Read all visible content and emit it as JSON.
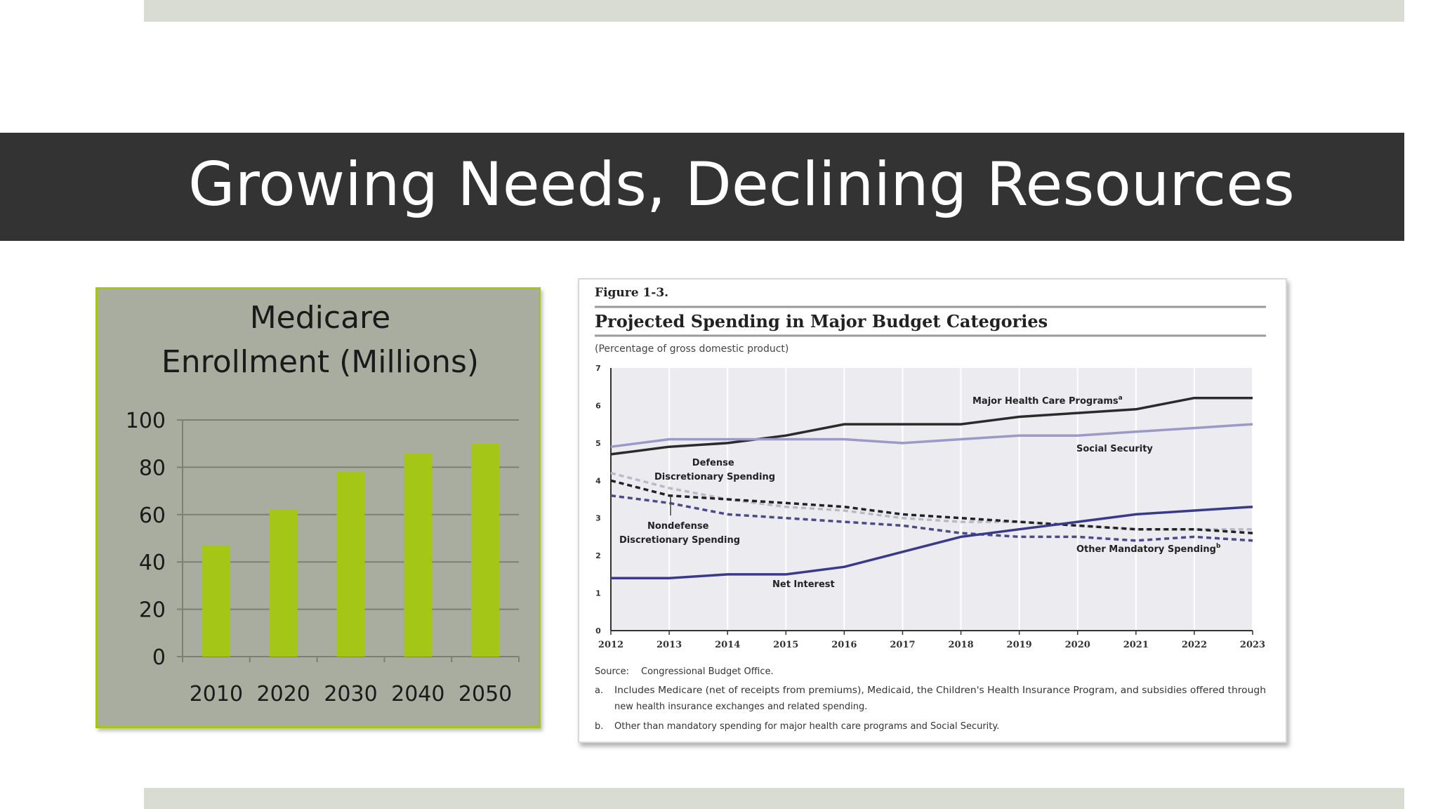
{
  "slide": {
    "title": "Growing Needs, Declining Resources",
    "colors": {
      "title_bar": "#333333",
      "accent_band": "#d9dcd3",
      "bar_green": "#a4c617"
    }
  },
  "chart_data": [
    {
      "type": "bar",
      "title": "Medicare Enrollment (Millions)",
      "title_lines": [
        "Medicare",
        "Enrollment (Millions)"
      ],
      "categories": [
        "2010",
        "2020",
        "2030",
        "2040",
        "2050"
      ],
      "values": [
        47,
        62,
        78,
        86,
        90
      ],
      "ylim": [
        0,
        100
      ],
      "yticks": [
        0,
        20,
        40,
        60,
        80,
        100
      ],
      "grid": true,
      "legend": "none",
      "bar_color": "#a4c617"
    },
    {
      "type": "line",
      "figure_label": "Figure 1-3.",
      "title": "Projected Spending in Major Budget Categories",
      "subtitle": "(Percentage of gross domestic product)",
      "x": [
        2012,
        2013,
        2014,
        2015,
        2016,
        2017,
        2018,
        2019,
        2020,
        2021,
        2022,
        2023
      ],
      "ylim": [
        0,
        7
      ],
      "yticks": [
        0,
        1,
        2,
        3,
        4,
        5,
        6,
        7
      ],
      "series": [
        {
          "name": "Major Health Care Programs",
          "label_sup": "a",
          "style": "solid",
          "color": "#2b2b2b",
          "values": [
            4.7,
            4.9,
            5.0,
            5.2,
            5.5,
            5.5,
            5.5,
            5.7,
            5.8,
            5.9,
            6.2,
            6.2
          ]
        },
        {
          "name": "Social Security",
          "label_sup": "",
          "style": "solid",
          "color": "#9a9ac8",
          "values": [
            4.9,
            5.1,
            5.1,
            5.1,
            5.1,
            5.0,
            5.1,
            5.2,
            5.2,
            5.3,
            5.4,
            5.5
          ]
        },
        {
          "name": "Defense Discretionary Spending",
          "label_sup": "",
          "style": "dashed",
          "color": "#b9b9c8",
          "values": [
            4.2,
            3.8,
            3.5,
            3.3,
            3.2,
            3.0,
            2.9,
            2.9,
            2.8,
            2.7,
            2.7,
            2.7
          ]
        },
        {
          "name": "Nondefense Discretionary Spending",
          "label_sup": "",
          "style": "dashed",
          "color": "#222222",
          "values": [
            4.0,
            3.6,
            3.5,
            3.4,
            3.3,
            3.1,
            3.0,
            2.9,
            2.8,
            2.7,
            2.7,
            2.6
          ]
        },
        {
          "name": "Other Mandatory Spending",
          "label_sup": "b",
          "style": "dashed",
          "color": "#4a4a8a",
          "values": [
            3.6,
            3.4,
            3.1,
            3.0,
            2.9,
            2.8,
            2.6,
            2.5,
            2.5,
            2.4,
            2.5,
            2.4
          ]
        },
        {
          "name": "Net Interest",
          "label_sup": "",
          "style": "solid",
          "color": "#3a3a8a",
          "values": [
            1.4,
            1.4,
            1.5,
            1.5,
            1.7,
            2.1,
            2.5,
            2.7,
            2.9,
            3.1,
            3.2,
            3.3
          ]
        }
      ],
      "source_label": "Source:",
      "source": "Congressional Budget Office.",
      "notes": [
        {
          "mark": "a.",
          "lines": [
            "Includes Medicare (net of receipts from premiums), Medicaid, the Children's Health Insurance Program, and subsidies offered through",
            "new health insurance exchanges and related spending."
          ]
        },
        {
          "mark": "b.",
          "lines": [
            "Other than mandatory spending for major health care programs and Social Security."
          ]
        }
      ]
    }
  ]
}
